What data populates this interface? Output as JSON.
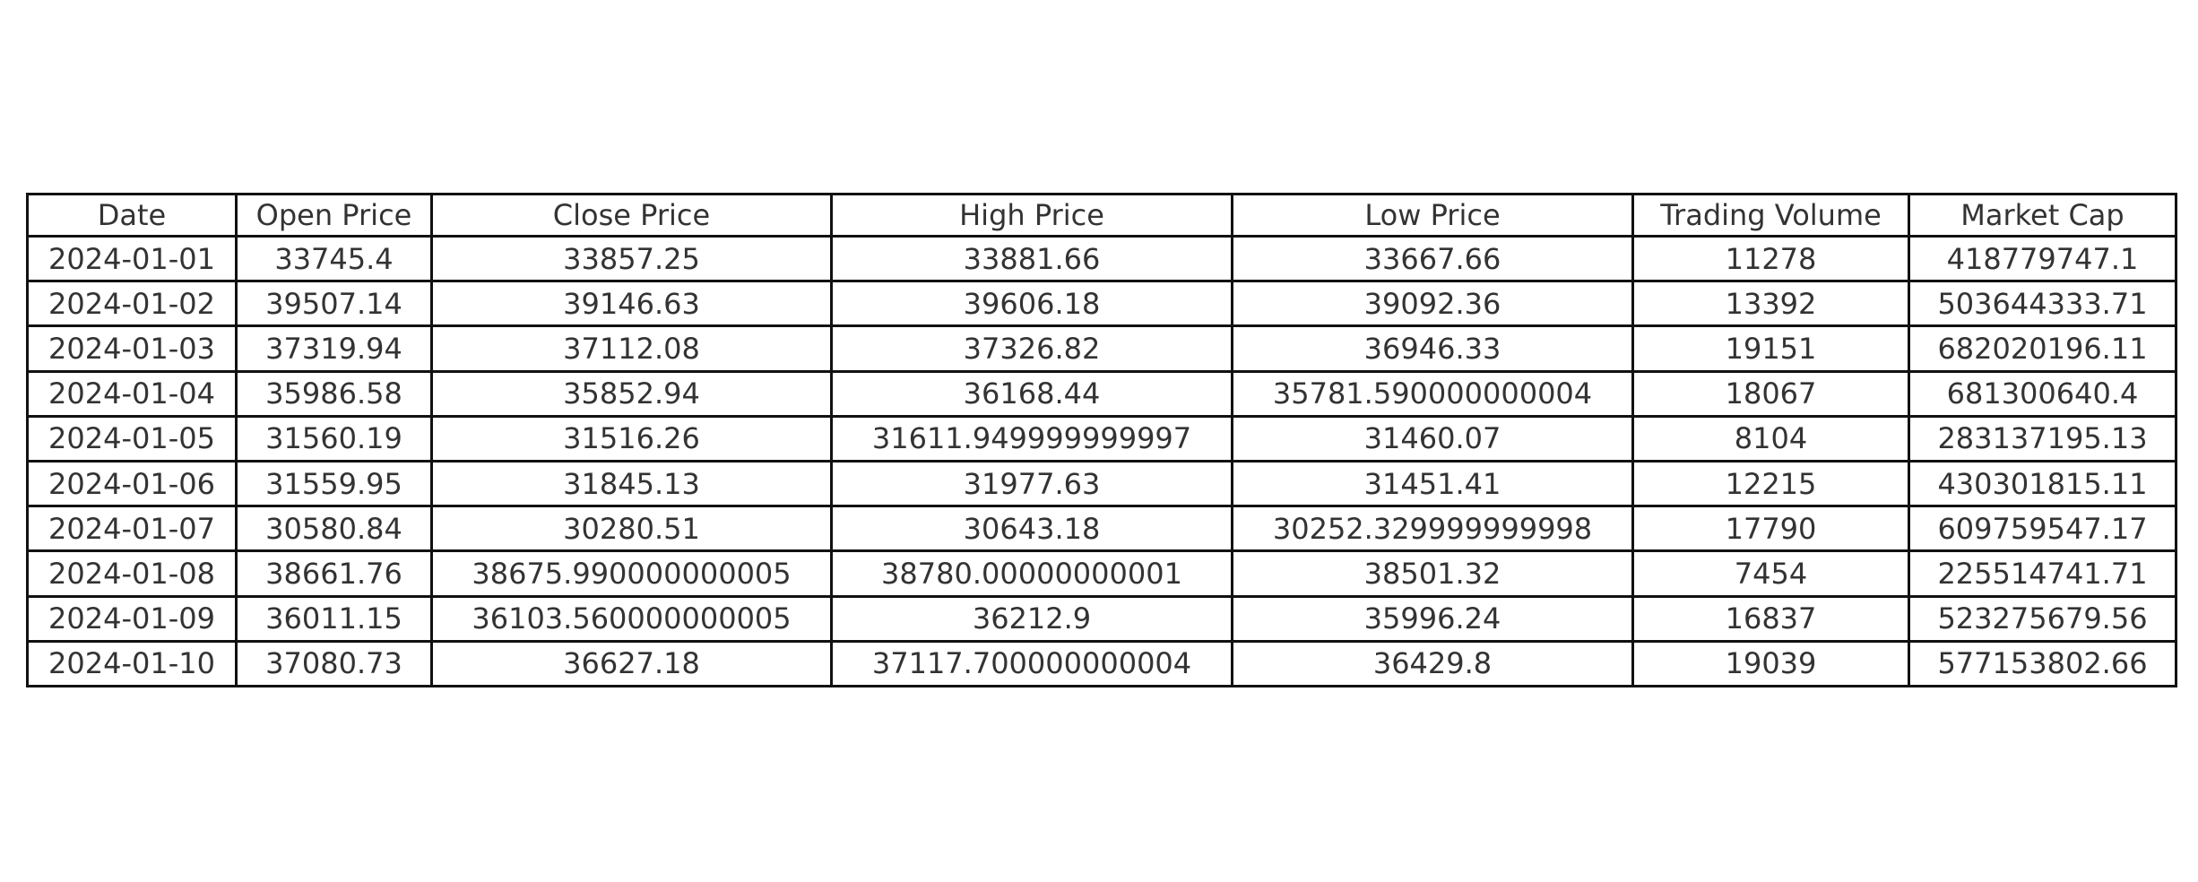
{
  "chart_data": {
    "type": "table",
    "columns": [
      "Date",
      "Open Price",
      "Close Price",
      "High Price",
      "Low Price",
      "Trading Volume",
      "Market Cap"
    ],
    "rows": [
      [
        "2024-01-01",
        "33745.4",
        "33857.25",
        "33881.66",
        "33667.66",
        "11278",
        "418779747.1"
      ],
      [
        "2024-01-02",
        "39507.14",
        "39146.63",
        "39606.18",
        "39092.36",
        "13392",
        "503644333.71"
      ],
      [
        "2024-01-03",
        "37319.94",
        "37112.08",
        "37326.82",
        "36946.33",
        "19151",
        "682020196.11"
      ],
      [
        "2024-01-04",
        "35986.58",
        "35852.94",
        "36168.44",
        "35781.590000000004",
        "18067",
        "681300640.4"
      ],
      [
        "2024-01-05",
        "31560.19",
        "31516.26",
        "31611.949999999997",
        "31460.07",
        "8104",
        "283137195.13"
      ],
      [
        "2024-01-06",
        "31559.95",
        "31845.13",
        "31977.63",
        "31451.41",
        "12215",
        "430301815.11"
      ],
      [
        "2024-01-07",
        "30580.84",
        "30280.51",
        "30643.18",
        "30252.329999999998",
        "17790",
        "609759547.17"
      ],
      [
        "2024-01-08",
        "38661.76",
        "38675.990000000005",
        "38780.00000000001",
        "38501.32",
        "7454",
        "225514741.71"
      ],
      [
        "2024-01-09",
        "36011.15",
        "36103.560000000005",
        "36212.9",
        "35996.24",
        "16837",
        "523275679.56"
      ],
      [
        "2024-01-10",
        "37080.73",
        "36627.18",
        "37117.700000000004",
        "36429.8",
        "19039",
        "577153802.66"
      ]
    ]
  },
  "colors": {
    "border": "#111111",
    "text": "#333333",
    "background": "#ffffff"
  }
}
